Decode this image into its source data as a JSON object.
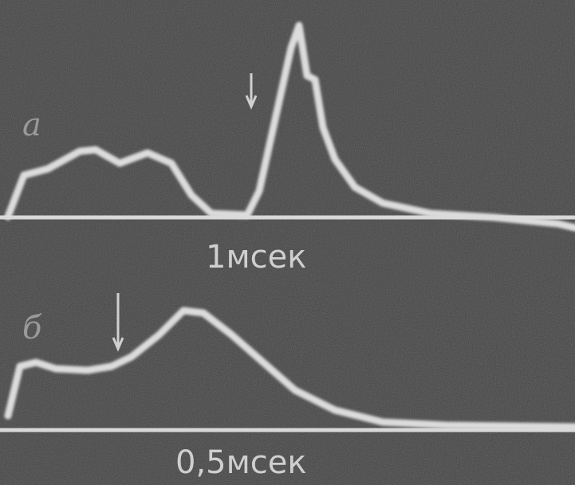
{
  "panels": [
    {
      "label": "а",
      "scale": "1мсек"
    },
    {
      "label": "б",
      "scale": "0,5мсек"
    }
  ]
}
